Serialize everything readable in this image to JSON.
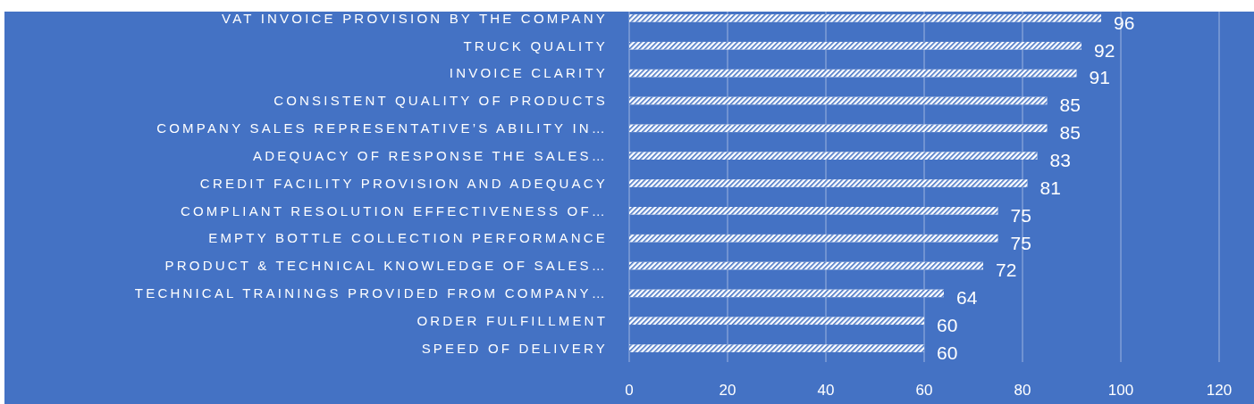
{
  "chart_data": {
    "type": "bar",
    "orientation": "horizontal",
    "categories": [
      "VAT INVOICE PROVISION BY THE COMPANY",
      "TRUCK QUALITY",
      "INVOICE CLARITY",
      "CONSISTENT QUALITY OF PRODUCTS",
      "COMPANY SALES REPRESENTATIVE’S ABILITY IN…",
      "ADEQUACY OF RESPONSE THE SALES…",
      "CREDIT FACILITY PROVISION AND ADEQUACY",
      "COMPLIANT RESOLUTION EFFECTIVENESS OF…",
      "EMPTY BOTTLE COLLECTION PERFORMANCE",
      "PRODUCT & TECHNICAL KNOWLEDGE OF SALES…",
      "TECHNICAL TRAININGS PROVIDED FROM COMPANY…",
      "ORDER FULFILLMENT",
      "SPEED OF DELIVERY"
    ],
    "values": [
      96,
      92,
      91,
      85,
      85,
      83,
      81,
      75,
      75,
      72,
      64,
      60,
      60
    ],
    "color": "#ffffff",
    "data_labels": true,
    "grid": "x",
    "xlim": [
      0,
      120
    ],
    "xticks": [
      0,
      20,
      40,
      60,
      80,
      100,
      120
    ]
  }
}
